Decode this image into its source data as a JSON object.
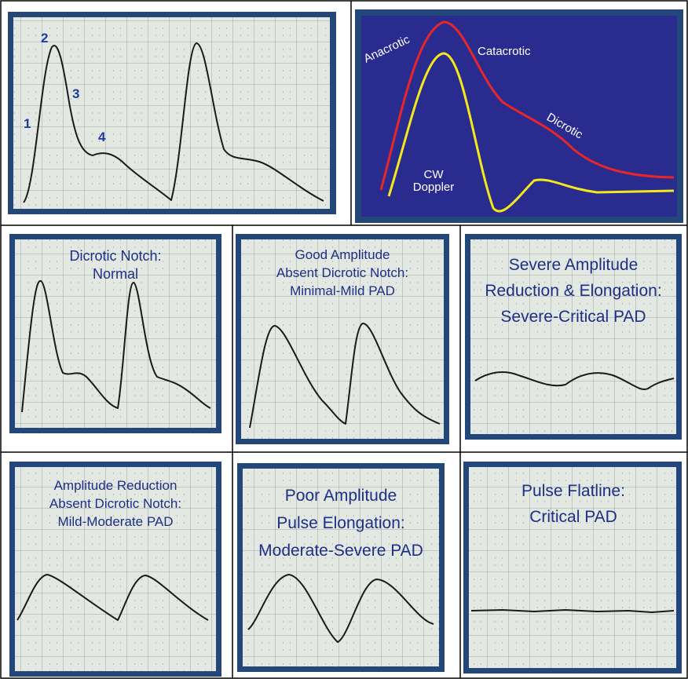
{
  "panels": [
    {
      "labels": [
        "1",
        "2",
        "3",
        "4"
      ]
    },
    {
      "labels": [
        "Anacrotic",
        "Catacrotic",
        "Dicrotic"
      ],
      "doppler": [
        "CW",
        "Doppler"
      ]
    },
    {
      "title": [
        "Dicrotic Notch:",
        "Normal"
      ]
    },
    {
      "title": [
        "Good Amplitude",
        "Absent Dicrotic Notch:",
        "Minimal-Mild PAD"
      ]
    },
    {
      "title": [
        "Severe Amplitude",
        "Reduction & Elongation:",
        "Severe-Critical PAD"
      ]
    },
    {
      "title": [
        "Amplitude Reduction",
        "Absent Dicrotic Notch:",
        "Mild-Moderate PAD"
      ]
    },
    {
      "title": [
        "Poor Amplitude",
        "Pulse Elongation:",
        "Moderate-Severe PAD"
      ]
    },
    {
      "title": [
        "Pulse Flatline:",
        "Critical PAD"
      ]
    }
  ]
}
